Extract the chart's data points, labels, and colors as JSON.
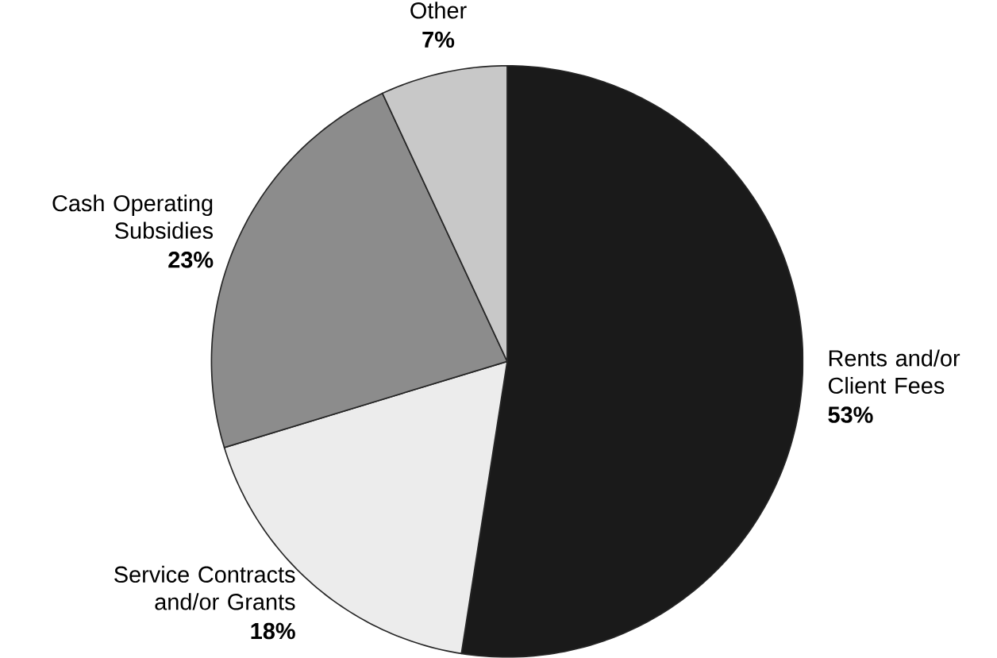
{
  "chart_data": {
    "type": "pie",
    "categories": [
      "Rents and/or Client Fees",
      "Service Contracts and/or Grants",
      "Cash Operating Subsidies",
      "Other"
    ],
    "values": [
      53,
      18,
      23,
      7
    ],
    "value_labels": [
      "53%",
      "18%",
      "23%",
      "7%"
    ],
    "colors": [
      "#1a1a1a",
      "#ececec",
      "#8c8c8c",
      "#c8c8c8"
    ]
  }
}
